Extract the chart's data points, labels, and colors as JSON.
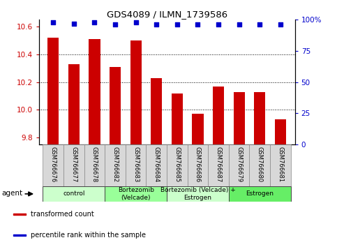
{
  "title": "GDS4089 / ILMN_1739586",
  "samples": [
    "GSM766676",
    "GSM766677",
    "GSM766678",
    "GSM766682",
    "GSM766683",
    "GSM766684",
    "GSM766685",
    "GSM766686",
    "GSM766687",
    "GSM766679",
    "GSM766680",
    "GSM766681"
  ],
  "bar_values": [
    10.52,
    10.33,
    10.51,
    10.31,
    10.5,
    10.23,
    10.12,
    9.97,
    10.17,
    10.13,
    10.13,
    9.93
  ],
  "percentile_values": [
    98,
    97,
    98,
    96,
    98,
    96,
    96,
    96,
    96,
    96,
    96,
    96
  ],
  "bar_color": "#cc0000",
  "dot_color": "#0000cc",
  "ylim_left": [
    9.75,
    10.65
  ],
  "ylim_right": [
    0,
    100
  ],
  "yticks_left": [
    9.8,
    10.0,
    10.2,
    10.4,
    10.6
  ],
  "yticks_right": [
    0,
    25,
    50,
    75,
    100
  ],
  "ytick_labels_right": [
    "0",
    "25",
    "50",
    "75",
    "100%"
  ],
  "grid_lines": [
    10.0,
    10.2,
    10.4
  ],
  "groups": [
    {
      "label": "control",
      "start": 0,
      "end": 3,
      "color": "#ccffcc"
    },
    {
      "label": "Bortezomib\n(Velcade)",
      "start": 3,
      "end": 6,
      "color": "#99ff99"
    },
    {
      "label": "Bortezomib (Velcade) +\nEstrogen",
      "start": 6,
      "end": 9,
      "color": "#ccffcc"
    },
    {
      "label": "Estrogen",
      "start": 9,
      "end": 12,
      "color": "#66ee66"
    }
  ],
  "legend_items": [
    {
      "color": "#cc0000",
      "label": "transformed count"
    },
    {
      "color": "#0000cc",
      "label": "percentile rank within the sample"
    }
  ],
  "agent_label": "agent",
  "bar_color_left": "#cc0000",
  "bar_color_right": "#0000cc",
  "bar_width": 0.55,
  "cell_bg": "#d8d8d8"
}
